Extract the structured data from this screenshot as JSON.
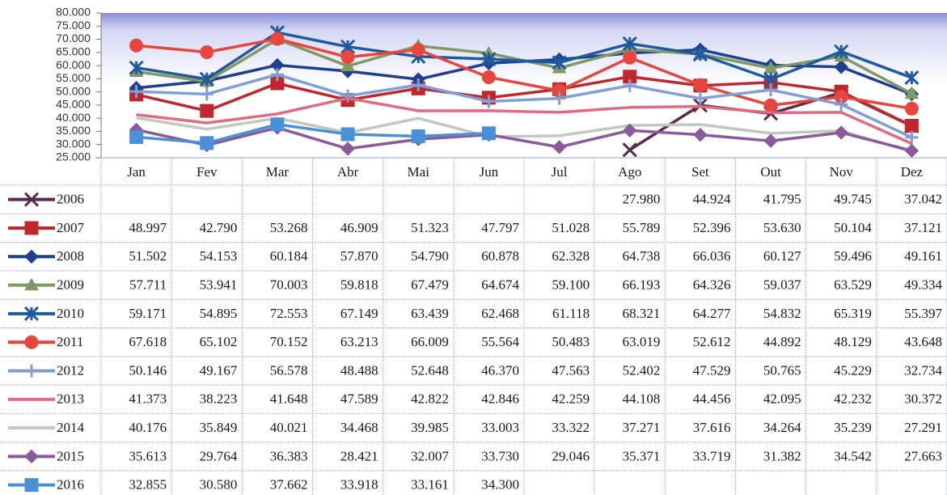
{
  "chart_data": {
    "type": "line",
    "categories": [
      "Jan",
      "Fev",
      "Mar",
      "Abr",
      "Mai",
      "Jun",
      "Jul",
      "Ago",
      "Set",
      "Out",
      "Nov",
      "Dez"
    ],
    "ylim": [
      25000,
      80000
    ],
    "yticks": [
      {
        "value": 25000,
        "label": "25.000"
      },
      {
        "value": 30000,
        "label": "30.000"
      },
      {
        "value": 35000,
        "label": "35.000"
      },
      {
        "value": 40000,
        "label": "40.000"
      },
      {
        "value": 45000,
        "label": "45.000"
      },
      {
        "value": 50000,
        "label": "50.000"
      },
      {
        "value": 55000,
        "label": "55.000"
      },
      {
        "value": 60000,
        "label": "60.000"
      },
      {
        "value": 65000,
        "label": "65.000"
      },
      {
        "value": 70000,
        "label": "70.000"
      },
      {
        "value": 75000,
        "label": "75.000"
      },
      {
        "value": 80000,
        "label": "80.000"
      }
    ],
    "series": [
      {
        "name": "2006",
        "color": "#5a2a4a",
        "marker": "x",
        "values": [
          null,
          null,
          null,
          null,
          null,
          null,
          null,
          27980,
          44924,
          41795,
          49745,
          37042
        ],
        "value_labels": [
          null,
          null,
          null,
          null,
          null,
          null,
          null,
          "27.980",
          "44.924",
          "41.795",
          "49.745",
          "37.042"
        ]
      },
      {
        "name": "2007",
        "color": "#c0272d",
        "marker": "square",
        "values": [
          48997,
          42790,
          53268,
          46909,
          51323,
          47797,
          51028,
          55789,
          52396,
          53630,
          50104,
          37121
        ],
        "value_labels": [
          "48.997",
          "42.790",
          "53.268",
          "46.909",
          "51.323",
          "47.797",
          "51.028",
          "55.789",
          "52.396",
          "53.630",
          "50.104",
          "37.121"
        ]
      },
      {
        "name": "2008",
        "color": "#1f3f8f",
        "marker": "diamond",
        "values": [
          51502,
          54153,
          60184,
          57870,
          54790,
          60878,
          62328,
          64738,
          66036,
          60127,
          59496,
          49161
        ],
        "value_labels": [
          "51.502",
          "54.153",
          "60.184",
          "57.870",
          "54.790",
          "60.878",
          "62.328",
          "64.738",
          "66.036",
          "60.127",
          "59.496",
          "49.161"
        ]
      },
      {
        "name": "2009",
        "color": "#7f9a65",
        "marker": "triangle",
        "values": [
          57711,
          53941,
          70003,
          59818,
          67479,
          64674,
          59100,
          66193,
          64326,
          59037,
          63529,
          49334
        ],
        "value_labels": [
          "57.711",
          "53.941",
          "70.003",
          "59.818",
          "67.479",
          "64.674",
          "59.100",
          "66.193",
          "64.326",
          "59.037",
          "63.529",
          "49.334"
        ]
      },
      {
        "name": "2010",
        "color": "#1f5aa0",
        "marker": "star",
        "values": [
          59171,
          54895,
          72553,
          67149,
          63439,
          62468,
          61118,
          68321,
          64277,
          54832,
          65319,
          55397
        ],
        "value_labels": [
          "59.171",
          "54.895",
          "72.553",
          "67.149",
          "63.439",
          "62.468",
          "61.118",
          "68.321",
          "64.277",
          "54.832",
          "65.319",
          "55.397"
        ]
      },
      {
        "name": "2011",
        "color": "#e8453c",
        "marker": "circle",
        "values": [
          67618,
          65102,
          70152,
          63213,
          66009,
          55564,
          50483,
          63019,
          52612,
          44892,
          48129,
          43648
        ],
        "value_labels": [
          "67.618",
          "65.102",
          "70.152",
          "63.213",
          "66.009",
          "55.564",
          "50.483",
          "63.019",
          "52.612",
          "44.892",
          "48.129",
          "43.648"
        ]
      },
      {
        "name": "2012",
        "color": "#7f9fd6",
        "marker": "plus",
        "values": [
          50146,
          49167,
          56578,
          48488,
          52648,
          46370,
          47563,
          52402,
          47529,
          50765,
          45229,
          32734
        ],
        "value_labels": [
          "50.146",
          "49.167",
          "56.578",
          "48.488",
          "52.648",
          "46.370",
          "47.563",
          "52.402",
          "47.529",
          "50.765",
          "45.229",
          "32.734"
        ]
      },
      {
        "name": "2013",
        "color": "#e06a80",
        "marker": "none",
        "values": [
          41373,
          38223,
          41648,
          47589,
          42822,
          42846,
          42259,
          44108,
          44456,
          42095,
          42232,
          30372
        ],
        "value_labels": [
          "41.373",
          "38.223",
          "41.648",
          "47.589",
          "42.822",
          "42.846",
          "42.259",
          "44.108",
          "44.456",
          "42.095",
          "42.232",
          "30.372"
        ]
      },
      {
        "name": "2014",
        "color": "#c0c8c0",
        "marker": "none",
        "values": [
          40176,
          35849,
          40021,
          34468,
          39985,
          33003,
          33322,
          37271,
          37616,
          34264,
          35239,
          27291
        ],
        "value_labels": [
          "40.176",
          "35.849",
          "40.021",
          "34.468",
          "39.985",
          "33.003",
          "33.322",
          "37.271",
          "37.616",
          "34.264",
          "35.239",
          "27.291"
        ]
      },
      {
        "name": "2015",
        "color": "#8a5a9a",
        "marker": "diamond",
        "values": [
          35613,
          29764,
          36383,
          28421,
          32007,
          33730,
          29046,
          35371,
          33719,
          31382,
          34542,
          27663
        ],
        "value_labels": [
          "35.613",
          "29.764",
          "36.383",
          "28.421",
          "32.007",
          "33.730",
          "29.046",
          "35.371",
          "33.719",
          "31.382",
          "34.542",
          "27.663"
        ]
      },
      {
        "name": "2016",
        "color": "#4a90d8",
        "marker": "square",
        "values": [
          32855,
          30580,
          37662,
          33918,
          33161,
          34300,
          null,
          null,
          null,
          null,
          null,
          null
        ],
        "value_labels": [
          "32.855",
          "30.580",
          "37.662",
          "33.918",
          "33.161",
          "34.300",
          null,
          null,
          null,
          null,
          null,
          null
        ]
      }
    ]
  }
}
